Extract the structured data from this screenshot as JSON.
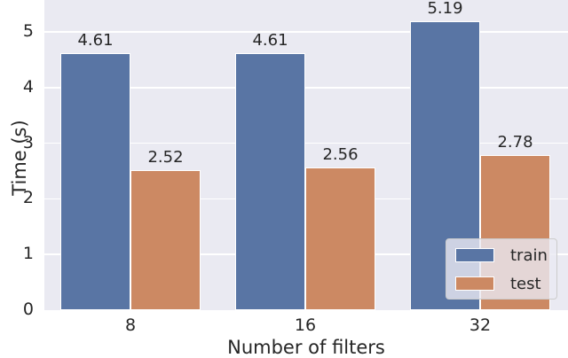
{
  "chart_data": {
    "type": "bar",
    "title": "",
    "xlabel": "Number of filters",
    "ylabel": "Time (s)",
    "categories": [
      "8",
      "16",
      "32"
    ],
    "series": [
      {
        "name": "train",
        "values": [
          4.61,
          4.61,
          5.19
        ],
        "color": "#5975a4"
      },
      {
        "name": "test",
        "values": [
          2.52,
          2.56,
          2.78
        ],
        "color": "#cc8963"
      }
    ],
    "ylim": [
      0,
      5.55
    ],
    "yticks": [
      "0",
      "1",
      "2",
      "3",
      "4",
      "5"
    ],
    "grid": true,
    "legend_position": "lower right",
    "value_labels": [
      [
        "4.61",
        "4.61",
        "5.19"
      ],
      [
        "2.52",
        "2.56",
        "2.78"
      ]
    ]
  }
}
